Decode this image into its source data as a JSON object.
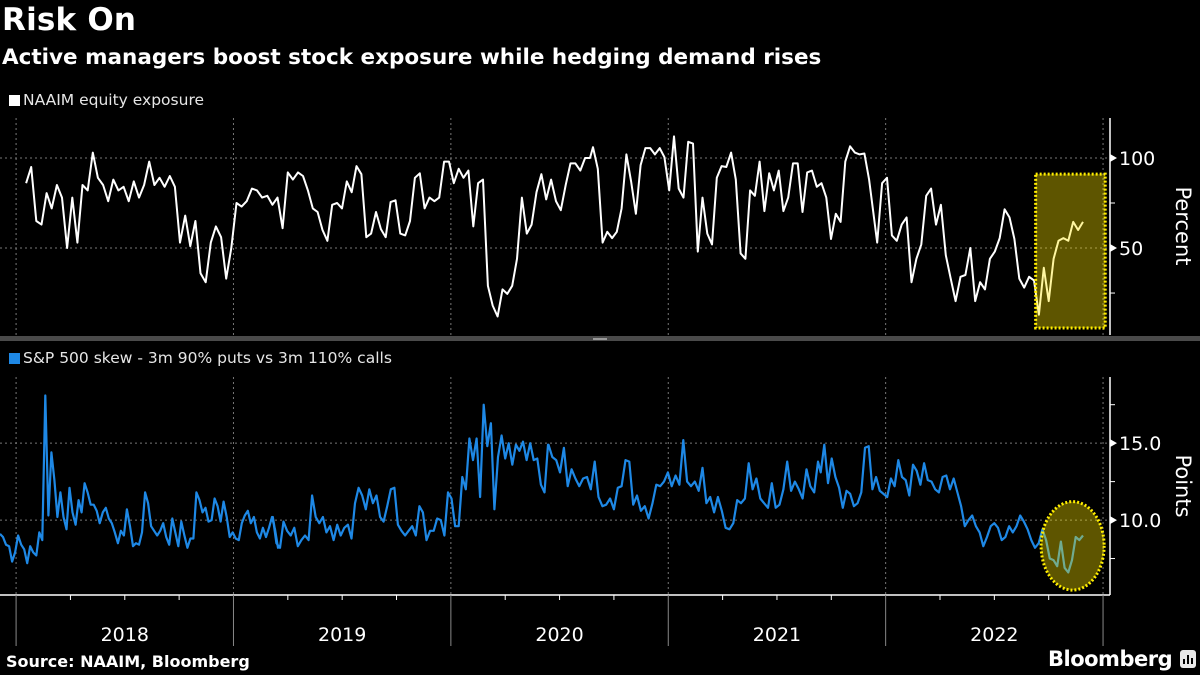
{
  "header": {
    "title": "Risk On",
    "subtitle": "Active managers boost stock exposure while hedging demand rises"
  },
  "footer": {
    "source": "Source: NAAIM, Bloomberg",
    "logo": "Bloomberg"
  },
  "colors": {
    "background": "#000000",
    "naaim_line": "#ffffff",
    "skew_line": "#1e88e5",
    "highlight_fill": "#ffe600",
    "highlight_border": "#ffee00"
  },
  "chart_data": [
    {
      "type": "line",
      "title": "NAAIM equity exposure",
      "ylabel": "Percent",
      "ylim": [
        1.7,
        122.2
      ],
      "xlim": [
        2017.926,
        2023.032
      ],
      "yticks": [
        {
          "value": 100,
          "label": "100"
        },
        {
          "value": 50,
          "label": "50"
        }
      ],
      "minor_yticks": [
        75,
        25
      ],
      "grid": true,
      "legend": "top-left",
      "series": [
        {
          "name": "NAAIM equity exposure",
          "segments": [
            {
              "x_start": 2018.046,
              "x_end": 2019.297,
              "values": [
                86,
                95,
                65,
                63,
                80.5,
                72,
                85,
                78,
                50,
                78,
                53,
                85,
                82,
                103,
                89,
                85,
                76,
                88,
                82,
                84,
                76,
                87,
                78,
                85,
                98,
                85,
                89,
                84,
                90,
                84,
                53,
                68,
                51,
                65,
                36,
                31,
                53,
                62,
                56,
                33,
                50,
                75,
                73,
                76,
                83,
                82,
                78,
                79,
                74,
                78,
                61,
                92,
                88,
                92
              ]
            },
            {
              "x_start": 2019.32,
              "x_end": 2020.64,
              "values": [
                90,
                82,
                72,
                70,
                60,
                54,
                74,
                75,
                72,
                87,
                81,
                95.5,
                91,
                56,
                58,
                70,
                60.5,
                56,
                75.5,
                76.5,
                58,
                57,
                65,
                89,
                91.5,
                72,
                78,
                76,
                78,
                98,
                98,
                86,
                94,
                89,
                93,
                62,
                86,
                88,
                29,
                18,
                12,
                27,
                24.5,
                29,
                44,
                78,
                58,
                63,
                81,
                91,
                77,
                88,
                76,
                71,
                85,
                97,
                97,
                93,
                100,
                100
              ]
            },
            {
              "x_start": 2020.654,
              "x_end": 2021.924,
              "values": [
                106,
                94,
                53,
                59,
                55.5,
                59,
                72,
                102,
                87,
                69,
                96,
                105.5,
                105.5,
                102,
                105.5,
                100.5,
                82,
                112,
                83,
                78,
                109,
                108,
                48,
                78,
                58,
                52,
                89,
                95.5,
                95,
                103,
                88,
                47,
                44,
                82,
                79,
                98,
                70.5,
                91.5,
                82,
                93,
                70.5,
                78,
                97,
                97,
                70,
                92,
                93,
                84,
                86,
                78,
                55,
                69,
                64.5,
                98,
                106.5,
                103,
                102,
                102.5,
                88
              ]
            },
            {
              "x_start": 2021.961,
              "x_end": 2022.908,
              "values": [
                53,
                86,
                89,
                57,
                54,
                63,
                67,
                31,
                44,
                52,
                79,
                83,
                63,
                74,
                46,
                33,
                20.5,
                34,
                35,
                50,
                20.5,
                31,
                27,
                44,
                48,
                55.5,
                71.5,
                67,
                55,
                33,
                28,
                34,
                32,
                13,
                39,
                20.5,
                44,
                54,
                55.5,
                54,
                64.5,
                60,
                64.5
              ]
            }
          ]
        }
      ]
    },
    {
      "type": "line",
      "title": "S&P 500 skew - 3m 90% puts vs 3m 110% calls",
      "ylabel": "Points",
      "ylim": [
        5.13,
        19.3
      ],
      "xlim": [
        2017.926,
        2023.032
      ],
      "yticks": [
        {
          "value": 15,
          "label": "15.0"
        },
        {
          "value": 10,
          "label": "10.0"
        }
      ],
      "minor_yticks": [
        17.5,
        12.5,
        7.5
      ],
      "grid": true,
      "legend": "top-left",
      "xticks": [
        {
          "label": "2018",
          "start": 2018,
          "end": 2019
        },
        {
          "label": "2019",
          "start": 2019,
          "end": 2020
        },
        {
          "label": "2020",
          "start": 2020,
          "end": 2021
        },
        {
          "label": "2021",
          "start": 2021,
          "end": 2022
        },
        {
          "label": "2022",
          "start": 2022,
          "end": 2023
        }
      ],
      "series": [
        {
          "name": "S&P 500 skew - 3m 90% puts vs 3m 110% calls",
          "segments": [
            {
              "x_start": 2017.926,
              "x_end": 2019.205,
              "values": [
                9.1,
                8.9,
                8.4,
                8.3,
                7.3,
                7.9,
                9.0,
                8.4,
                8.1,
                7.2,
                8.3,
                7.9,
                7.7,
                9.2,
                8.7,
                18.1,
                10.3,
                14.4,
                12.6,
                10.2,
                11.8,
                10.2,
                9.4,
                12.1,
                10.5,
                9.7,
                11.3,
                10.5,
                12.4,
                11.8,
                11.0,
                11.0,
                10.6,
                9.8,
                10.5,
                10.8,
                10.1,
                9.8,
                9.2,
                8.5,
                9.3,
                9.0,
                10.7,
                9.6,
                8.3,
                8.5,
                8.4,
                9.2,
                11.8,
                11.1,
                9.6,
                9.3,
                9.0,
                9.3,
                9.8,
                8.9,
                8.4,
                10.1,
                9.2,
                8.3,
                9.9,
                9.0,
                8.2,
                8.8,
                8.8,
                11.8,
                11.3,
                10.5,
                10.8,
                9.9,
                10.0,
                11.4,
                10.9,
                9.9,
                11.2,
                10.2,
                8.9,
                9.2,
                8.8,
                8.7,
                9.8,
                10.3,
                10.6,
                9.8,
                10.2,
                9.2,
                8.8,
                9.5,
                8.9,
                9.5,
                10.2,
                9.4,
                8.2
              ]
            },
            {
              "x_start": 2019.181,
              "x_end": 2020.447,
              "values": [
                10.2,
                8.5,
                8.2,
                9.9,
                9.3,
                9.0,
                9.5,
                8.3,
                8.7,
                9.0,
                8.7,
                11.6,
                10.2,
                9.8,
                10.2,
                9.2,
                9.6,
                8.7,
                9.7,
                9.0,
                9.5,
                9.7,
                8.8,
                11.1,
                12.1,
                11.6,
                10.7,
                12.0,
                11.1,
                11.6,
                10.2,
                9.9,
                10.9,
                12.0,
                12.1,
                9.7,
                9.3,
                9.0,
                9.3,
                9.6,
                9.0,
                10.9,
                10.5,
                8.7,
                9.3,
                9.3,
                10.1,
                10.0,
                9.0,
                11.8,
                11.4,
                9.6,
                9.6,
                12.8,
                12.0,
                15.3,
                13.9,
                15.3,
                11.5,
                17.5,
                14.8,
                16.3,
                10.7,
                14.1,
                15.5,
                14.0,
                15.0,
                13.6,
                14.9,
                14.5,
                15.1,
                13.9,
                15.0,
                13.9,
                14.0,
                12.3,
                11.8,
                14.9
              ]
            },
            {
              "x_start": 2020.449,
              "x_end": 2021.689,
              "values": [
                14.9,
                14.1,
                13.9,
                13.1,
                14.7,
                12.2,
                13.3,
                12.7,
                12.2,
                12.7,
                12.8,
                12.0,
                13.8,
                11.5,
                10.9,
                11.0,
                11.4,
                10.7,
                12.1,
                12.2,
                13.9,
                13.8,
                11.0,
                11.6,
                10.6,
                10.9,
                10.1,
                11.1,
                12.3,
                12.2,
                12.5,
                13.1,
                12.2,
                12.9,
                12.3,
                15.2,
                12.5,
                12.2,
                12.5,
                11.9,
                13.4,
                11.1,
                11.5,
                10.5,
                11.5,
                10.6,
                9.5,
                9.4,
                9.8,
                11.3,
                11.1,
                11.4,
                13.7,
                12.0,
                12.7,
                11.4,
                11.1,
                10.8,
                12.4,
                10.8,
                11.0,
                12.0,
                13.8,
                11.9,
                12.5,
                12.0,
                11.4,
                13.3,
                12.2,
                11.8,
                13.8
              ]
            },
            {
              "x_start": 2021.701,
              "x_end": 2022.908,
              "values": [
                13.1,
                14.9,
                12.4,
                14.0,
                12.8,
                12.1,
                10.8,
                11.9,
                11.7,
                10.9,
                11.1,
                11.8,
                14.7,
                14.8,
                12.0,
                12.8,
                11.9,
                11.7,
                11.5,
                12.7,
                12.2,
                13.9,
                12.8,
                12.6,
                11.6,
                13.6,
                13.2,
                12.3,
                13.7,
                12.6,
                12.5,
                12.0,
                11.8,
                12.8,
                12.9,
                12.0,
                12.7,
                11.8,
                10.9,
                9.6,
                10.0,
                10.3,
                9.6,
                9.2,
                8.3,
                8.9,
                9.6,
                9.8,
                9.5,
                8.7,
                8.9,
                9.6,
                9.2,
                9.6,
                10.3,
                9.9,
                9.4,
                8.7,
                8.2,
                8.5,
                9.4,
                8.7,
                7.5,
                7.4,
                7.0,
                8.6,
                6.9,
                6.6,
                7.4,
                8.9,
                8.7,
                9.0
              ]
            }
          ]
        }
      ]
    }
  ]
}
